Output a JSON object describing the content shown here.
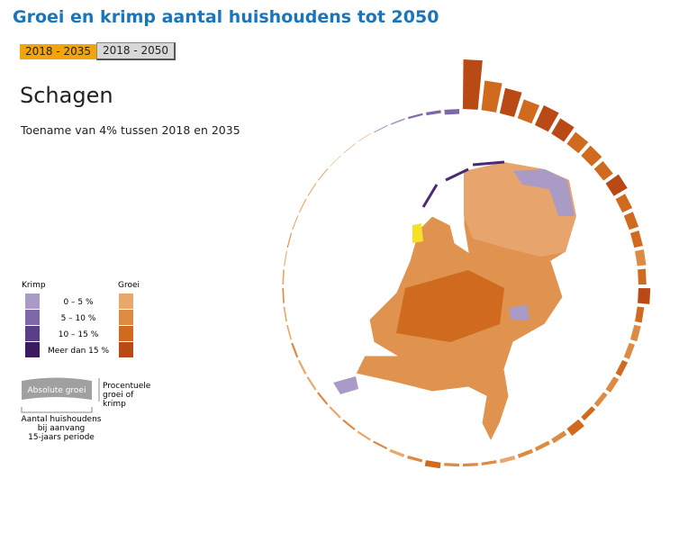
{
  "header": {
    "title": "Groei en krimp aantal huishoudens tot 2050",
    "buttons": [
      "2018 - 2035",
      "2018 - 2050"
    ]
  },
  "selection": {
    "region": "Schagen",
    "summary": "Toename van 4% tussen 2018 en 2035"
  },
  "legend": {
    "krimp_title": "Krimp",
    "groei_title": "Groei",
    "items": [
      "0 – 5 %",
      "5 – 10 %",
      "10 – 15 %",
      "Meer dan 15 %"
    ],
    "krimp_colors": [
      "#a99bc6",
      "#7e68a8",
      "#5a3e88",
      "#3a1c5e"
    ],
    "groei_colors": [
      "#e8a86c",
      "#dd8a45",
      "#d06a1e",
      "#b94a16"
    ]
  },
  "key": {
    "bar_label": "Absolute groei",
    "side_label": [
      "Procentuele",
      "groei of",
      "krimp"
    ],
    "bottom_label": [
      "Aantal huishoudens",
      "bij aanvang",
      "15-jaars periode"
    ]
  },
  "chart_data": {
    "type": "radial-bar",
    "values": [
      50,
      30,
      26,
      20,
      22,
      18,
      15,
      14,
      12,
      16,
      11,
      10,
      9,
      9,
      8,
      12,
      7,
      7,
      6,
      6,
      6,
      5,
      5,
      9,
      5,
      4,
      4,
      4,
      3,
      3,
      3,
      6,
      3,
      3,
      2,
      2,
      2,
      2,
      2,
      2,
      2,
      2,
      1.5,
      1.5,
      1.5,
      1.5,
      1,
      1,
      1,
      1,
      1,
      1,
      0.5,
      0.5,
      0.5,
      -1,
      -1.5,
      -2,
      -3,
      -5
    ],
    "classes": [
      7,
      6,
      7,
      6,
      7,
      7,
      6,
      6,
      6,
      7,
      6,
      6,
      6,
      5,
      6,
      7,
      6,
      5,
      5,
      6,
      5,
      5,
      6,
      6,
      5,
      5,
      5,
      4,
      5,
      5,
      5,
      6,
      5,
      4,
      5,
      4,
      5,
      4,
      5,
      4,
      4,
      5,
      4,
      4,
      5,
      4,
      4,
      5,
      4,
      4,
      4,
      4,
      4,
      5,
      4,
      0,
      0,
      1,
      1,
      1
    ]
  }
}
